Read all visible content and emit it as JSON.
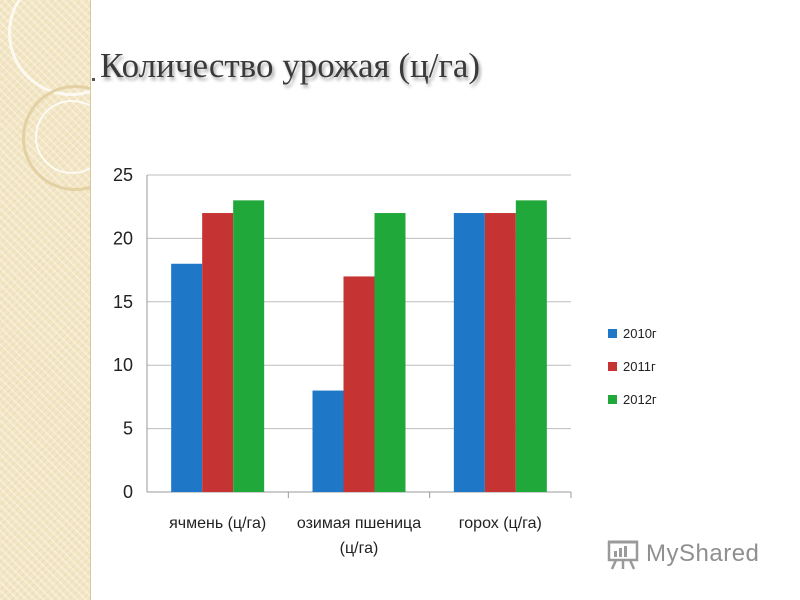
{
  "slide": {
    "title": "Количество урожая (ц/га)"
  },
  "chart_data": {
    "type": "bar",
    "categories": [
      [
        "ячмень (ц/га)"
      ],
      [
        "озимая пшеница",
        "(ц/га)"
      ],
      [
        "горох (ц/га)"
      ]
    ],
    "series": [
      {
        "name": "2010г",
        "color": "#1f77c8",
        "values": [
          18,
          8,
          22
        ]
      },
      {
        "name": "2011г",
        "color": "#c63333",
        "values": [
          22,
          17,
          22
        ]
      },
      {
        "name": "2012г",
        "color": "#20a83a",
        "values": [
          23,
          22,
          23
        ]
      }
    ],
    "ylim": [
      0,
      25
    ],
    "yticks": [
      0,
      5,
      10,
      15,
      20,
      25
    ],
    "grid": true,
    "legend": "right"
  },
  "watermark": {
    "text": "MyShared"
  },
  "icons": {
    "watermark_icon": "presentation-board-icon"
  }
}
